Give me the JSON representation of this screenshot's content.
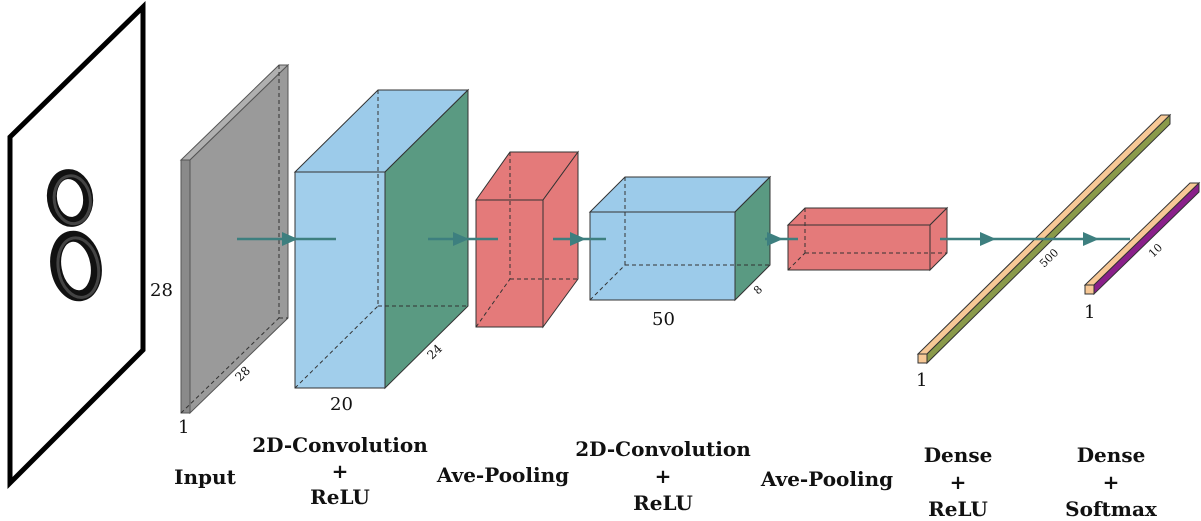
{
  "input_image": {
    "digit": "8"
  },
  "layers": [
    {
      "id": "input",
      "dims": {
        "height": "28",
        "width": "28",
        "depth": "1"
      }
    },
    {
      "id": "conv1",
      "dims": {
        "depth": "20",
        "width": "24"
      }
    },
    {
      "id": "pool1"
    },
    {
      "id": "conv2",
      "dims": {
        "depth": "50",
        "width": "8"
      }
    },
    {
      "id": "pool2"
    },
    {
      "id": "dense1",
      "dims": {
        "units": "500",
        "depth": "1"
      }
    },
    {
      "id": "dense2",
      "dims": {
        "units": "10",
        "depth": "1"
      }
    }
  ],
  "stages": [
    {
      "lines": [
        "Input"
      ]
    },
    {
      "lines": [
        "2D-Convolution",
        "+",
        "ReLU"
      ]
    },
    {
      "lines": [
        "Ave-Pooling"
      ]
    },
    {
      "lines": [
        "2D-Convolution",
        "+",
        "ReLU"
      ]
    },
    {
      "lines": [
        "Ave-Pooling"
      ]
    },
    {
      "lines": [
        "Dense",
        "+",
        "ReLU"
      ]
    },
    {
      "lines": [
        "Dense",
        "+",
        "Softmax"
      ]
    }
  ],
  "colors": {
    "input_layer": "#9a9a9a",
    "conv_front": "#9ccbea",
    "conv_side": "#5a9a82",
    "pool": "#e47a7a",
    "dense_front": "#f7c896",
    "dense_side_500": "#8a9a4a",
    "dense_side_10": "#8a1f8a",
    "arrow": "#3d7f7f"
  }
}
